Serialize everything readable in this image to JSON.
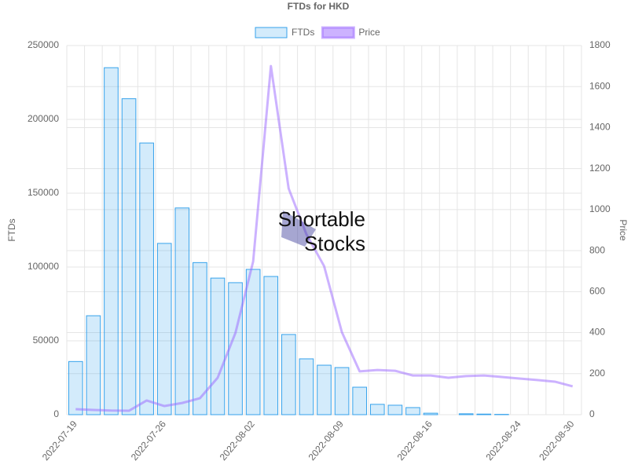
{
  "chart_data": {
    "type": "bar-line",
    "title": "FTDs for HKD",
    "y_label": "FTDs",
    "y2_label": "Price",
    "watermark": [
      "Shortable",
      "Stocks"
    ],
    "categories": [
      "2022-07-19",
      null,
      null,
      null,
      null,
      "2022-07-26",
      null,
      null,
      null,
      null,
      "2022-08-02",
      null,
      null,
      null,
      null,
      "2022-08-09",
      null,
      null,
      null,
      null,
      "2022-08-16",
      null,
      null,
      null,
      null,
      "2022-08-24",
      null,
      null,
      "2022-08-30"
    ],
    "series": [
      {
        "name": "FTDs",
        "type": "bar",
        "color": "#36a2eb",
        "values": [
          36000,
          67000,
          235000,
          214000,
          184000,
          116000,
          140000,
          103000,
          92500,
          89400,
          98400,
          93600,
          54300,
          37800,
          33500,
          31900,
          18600,
          7000,
          6400,
          4800,
          1000,
          0,
          600,
          400,
          200,
          0,
          0,
          0,
          0
        ]
      },
      {
        "name": "Price",
        "type": "line",
        "axis": "y2",
        "color": "#9966ff",
        "values": [
          27,
          23,
          20,
          19,
          69,
          42,
          57,
          80,
          180,
          398,
          747,
          1700,
          1103,
          880,
          724,
          402,
          211,
          218,
          214,
          191,
          191,
          180,
          188,
          191,
          184,
          176,
          169,
          161,
          138
        ]
      }
    ],
    "ylim": [
      0,
      250000
    ],
    "yticks": [
      0,
      50000,
      100000,
      150000,
      200000,
      250000
    ],
    "y2lim": [
      0,
      1800
    ],
    "y2ticks": [
      0,
      200,
      400,
      600,
      800,
      1000,
      1200,
      1400,
      1600,
      1800
    ],
    "grid": true,
    "legend": "top"
  }
}
